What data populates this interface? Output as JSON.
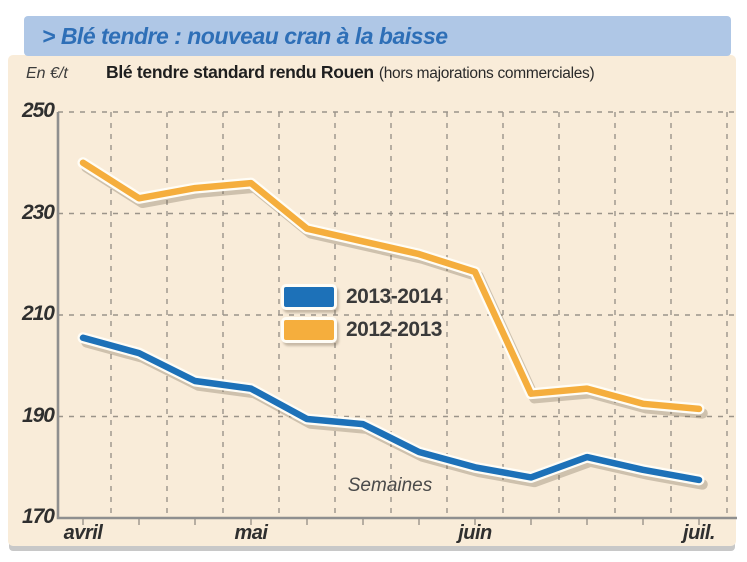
{
  "header": {
    "band_title": "> Blé tendre : nouveau cran à la baisse",
    "unit_label": "En €/t",
    "chart_title": "Blé tendre standard rendu Rouen",
    "chart_subtitle": "(hors majorations commerciales)"
  },
  "legend": {
    "items": [
      {
        "label": "2013-2014",
        "color": "#1d71b8"
      },
      {
        "label": "2012-2013",
        "color": "#f5ae3d"
      }
    ]
  },
  "chart_data": {
    "type": "line",
    "title": "Blé tendre standard rendu Rouen (hors majorations commerciales)",
    "xlabel": "Semaines",
    "ylabel": "En €/t",
    "ylim": [
      170,
      250
    ],
    "yticks": [
      170,
      190,
      210,
      230,
      250
    ],
    "grid": "dashed",
    "legend_position": "center",
    "weeks_count": 12,
    "months": [
      {
        "label": "avril",
        "week_index": 0
      },
      {
        "label": "mai",
        "week_index": 3
      },
      {
        "label": "juin",
        "week_index": 7
      },
      {
        "label": "juil.",
        "week_index": 11
      }
    ],
    "series": [
      {
        "name": "2013-2014",
        "color": "#1d71b8",
        "values": [
          205.5,
          202.5,
          197,
          195.5,
          189.5,
          188.5,
          183,
          180,
          178,
          182,
          179.5,
          177.5
        ]
      },
      {
        "name": "2012-2013",
        "color": "#f5ae3d",
        "values": [
          240,
          233,
          235,
          236,
          227,
          224.5,
          222,
          218.5,
          194.5,
          195.5,
          192.5,
          191.5
        ]
      }
    ]
  },
  "colors": {
    "band_bg": "#afc7e6",
    "band_text": "#2e6fb7",
    "card_bg": "#f9ecd9",
    "grid": "#9b948a",
    "axis": "#8f8f8f",
    "blue_line": "#1d71b8",
    "orange_line": "#f5ae3d"
  }
}
